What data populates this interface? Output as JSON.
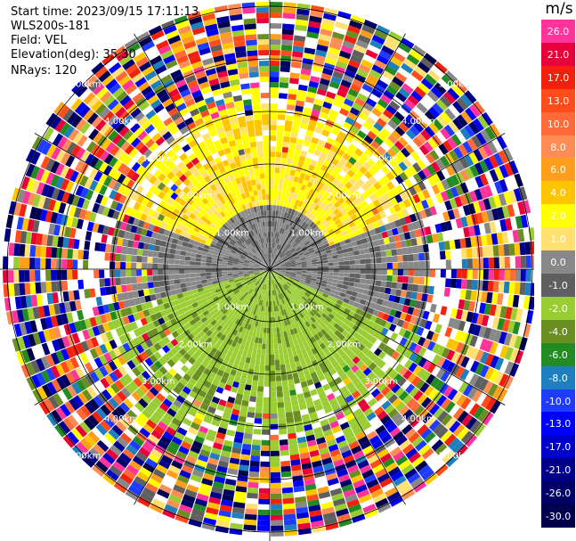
{
  "header": {
    "start_time": "Start time: 2023/09/15 17:11:13",
    "station": "WLS200s-181",
    "field": "Field: VEL",
    "elevation": "Elevation(deg): 35.30",
    "nrays": "NRays: 120"
  },
  "colorbar": {
    "unit": "m/s",
    "bins": [
      {
        "label": "26.0",
        "color": "#ff3399"
      },
      {
        "label": "21.0",
        "color": "#e8003a"
      },
      {
        "label": "17.0",
        "color": "#f2200c"
      },
      {
        "label": "13.0",
        "color": "#ff4c1a"
      },
      {
        "label": "10.0",
        "color": "#ff6a38"
      },
      {
        "label": "8.0",
        "color": "#ff8c55"
      },
      {
        "label": "6.0",
        "color": "#ff9e1a"
      },
      {
        "label": "4.0",
        "color": "#ffc400"
      },
      {
        "label": "2.0",
        "color": "#ffff00"
      },
      {
        "label": "1.0",
        "color": "#ffe070"
      },
      {
        "label": "0.0",
        "color": "#888888"
      },
      {
        "label": "-1.0",
        "color": "#5f5f5f"
      },
      {
        "label": "-2.0",
        "color": "#9acd32"
      },
      {
        "label": "-4.0",
        "color": "#6b8e23"
      },
      {
        "label": "-6.0",
        "color": "#228b22"
      },
      {
        "label": "-8.0",
        "color": "#1e7fbf"
      },
      {
        "label": "-10.0",
        "color": "#1e3cff"
      },
      {
        "label": "-13.0",
        "color": "#0000ff"
      },
      {
        "label": "-17.0",
        "color": "#0000cd"
      },
      {
        "label": "-21.0",
        "color": "#00008b"
      },
      {
        "label": "-26.0",
        "color": "#000066"
      },
      {
        "label": "-30.0",
        "color": "#00004d"
      }
    ]
  },
  "chart_data": {
    "type": "heatmap",
    "subtype": "PPI polar scan",
    "field": "VEL",
    "unit": "m/s",
    "n_rays": 120,
    "elevation_deg": 35.3,
    "range_rings": [
      {
        "label": "1.00km",
        "km": 1
      },
      {
        "label": "2.00km",
        "km": 2
      },
      {
        "label": "3.00km",
        "km": 3
      },
      {
        "label": "4.00km",
        "km": 4
      },
      {
        "label": "5.00km",
        "km": 5
      }
    ],
    "regions": [
      {
        "range_km": [
          0,
          2.2
        ],
        "sector": "north",
        "velocity_class": "2.0 to 4.0"
      },
      {
        "range_km": [
          0,
          1.8
        ],
        "sector": "east-west",
        "velocity_class": "0.0 to -1.0"
      },
      {
        "range_km": [
          0,
          3.0
        ],
        "sector": "south",
        "velocity_class": "-1.0 to -4.0"
      },
      {
        "range_km": [
          3.0,
          6.2
        ],
        "sector": "all",
        "velocity_class": "noise / mixed"
      }
    ]
  }
}
